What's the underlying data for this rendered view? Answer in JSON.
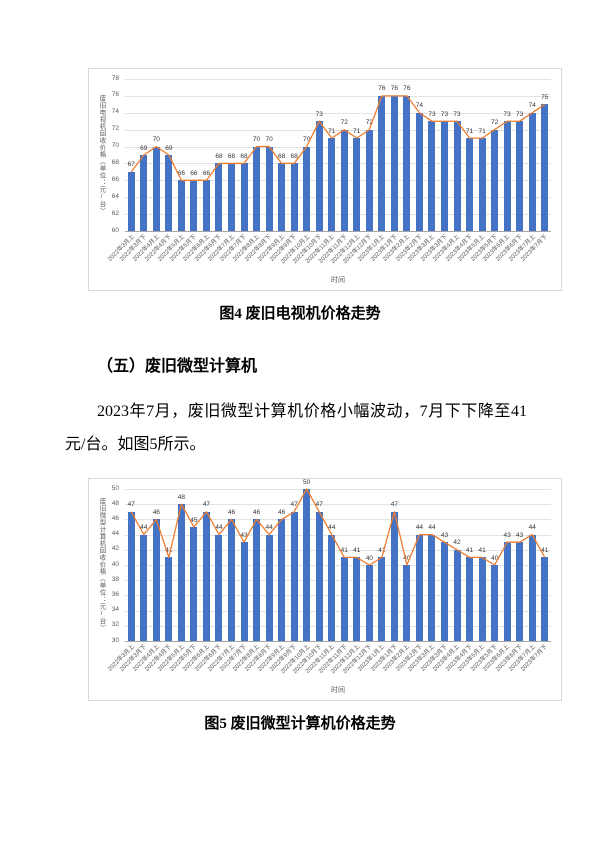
{
  "page": {
    "figure4_caption": "图4  废旧电视机价格走势",
    "section_heading": "（五）废旧微型计算机",
    "paragraph": "2023年7月，废旧微型计算机价格小幅波动，7月下下降至41元/台。如图5所示。",
    "figure5_caption": "图5  废旧微型计算机价格走势"
  },
  "chart_data": [
    {
      "type": "bar",
      "overlay": "line",
      "title": "",
      "ylabel": "废旧电视机回收价格（单位：元/台）",
      "xlabel": "时间",
      "ylim": [
        60,
        78
      ],
      "ytick_step": 2,
      "grid": true,
      "legend": "none",
      "bar_color": "#4472C4",
      "line_color": "#ED7D31",
      "categories": [
        "2022年3月上",
        "2022年3月下",
        "2022年4月上",
        "2022年4月下",
        "2022年5月上",
        "2022年5月下",
        "2022年6月上",
        "2022年6月下",
        "2022年7月上",
        "2022年7月下",
        "2022年8月上",
        "2022年8月下",
        "2022年9月上",
        "2022年9月下",
        "2022年10月上",
        "2022年10月下",
        "2022年11月上",
        "2022年11月下",
        "2022年12月上",
        "2022年12月下",
        "2023年1月上",
        "2023年1月下",
        "2023年2月上",
        "2023年2月下",
        "2023年3月上",
        "2023年3月下",
        "2023年4月上",
        "2023年4月下",
        "2023年5月上",
        "2023年5月下",
        "2023年6月上",
        "2023年6月下",
        "2023年7月上",
        "2023年7月下"
      ],
      "values": [
        67,
        69,
        70,
        69,
        66,
        66,
        66,
        68,
        68,
        68,
        70,
        70,
        68,
        68,
        70,
        73,
        71,
        72,
        71,
        72,
        76,
        76,
        76,
        74,
        73,
        73,
        73,
        71,
        71,
        72,
        73,
        73,
        74,
        75
      ]
    },
    {
      "type": "bar",
      "overlay": "line",
      "title": "",
      "ylabel": "废旧微型计算机回收价格（单位：元/台）",
      "xlabel": "时间",
      "ylim": [
        30,
        50
      ],
      "ytick_step": 2,
      "grid": true,
      "legend": "none",
      "bar_color": "#4472C4",
      "line_color": "#ED7D31",
      "categories": [
        "2022年3月上",
        "2022年3月下",
        "2022年4月上",
        "2022年4月下",
        "2022年5月上",
        "2022年5月下",
        "2022年6月上",
        "2022年6月下",
        "2022年7月上",
        "2022年7月下",
        "2022年8月上",
        "2022年8月下",
        "2022年9月上",
        "2022年9月下",
        "2022年10月上",
        "2022年10月下",
        "2022年11月上",
        "2022年11月下",
        "2022年12月上",
        "2022年12月下",
        "2023年1月上",
        "2023年1月下",
        "2023年2月上",
        "2023年2月下",
        "2023年3月上",
        "2023年3月下",
        "2023年4月上",
        "2023年4月下",
        "2023年5月上",
        "2023年5月下",
        "2023年6月上",
        "2023年6月下",
        "2023年7月上",
        "2023年7月下"
      ],
      "values": [
        47,
        44,
        46,
        41,
        48,
        45,
        47,
        44,
        46,
        43,
        46,
        44,
        46,
        47,
        50,
        47,
        44,
        41,
        41,
        40,
        41,
        47,
        40,
        44,
        44,
        43,
        42,
        41,
        41,
        40,
        43,
        43,
        44,
        41
      ]
    }
  ]
}
